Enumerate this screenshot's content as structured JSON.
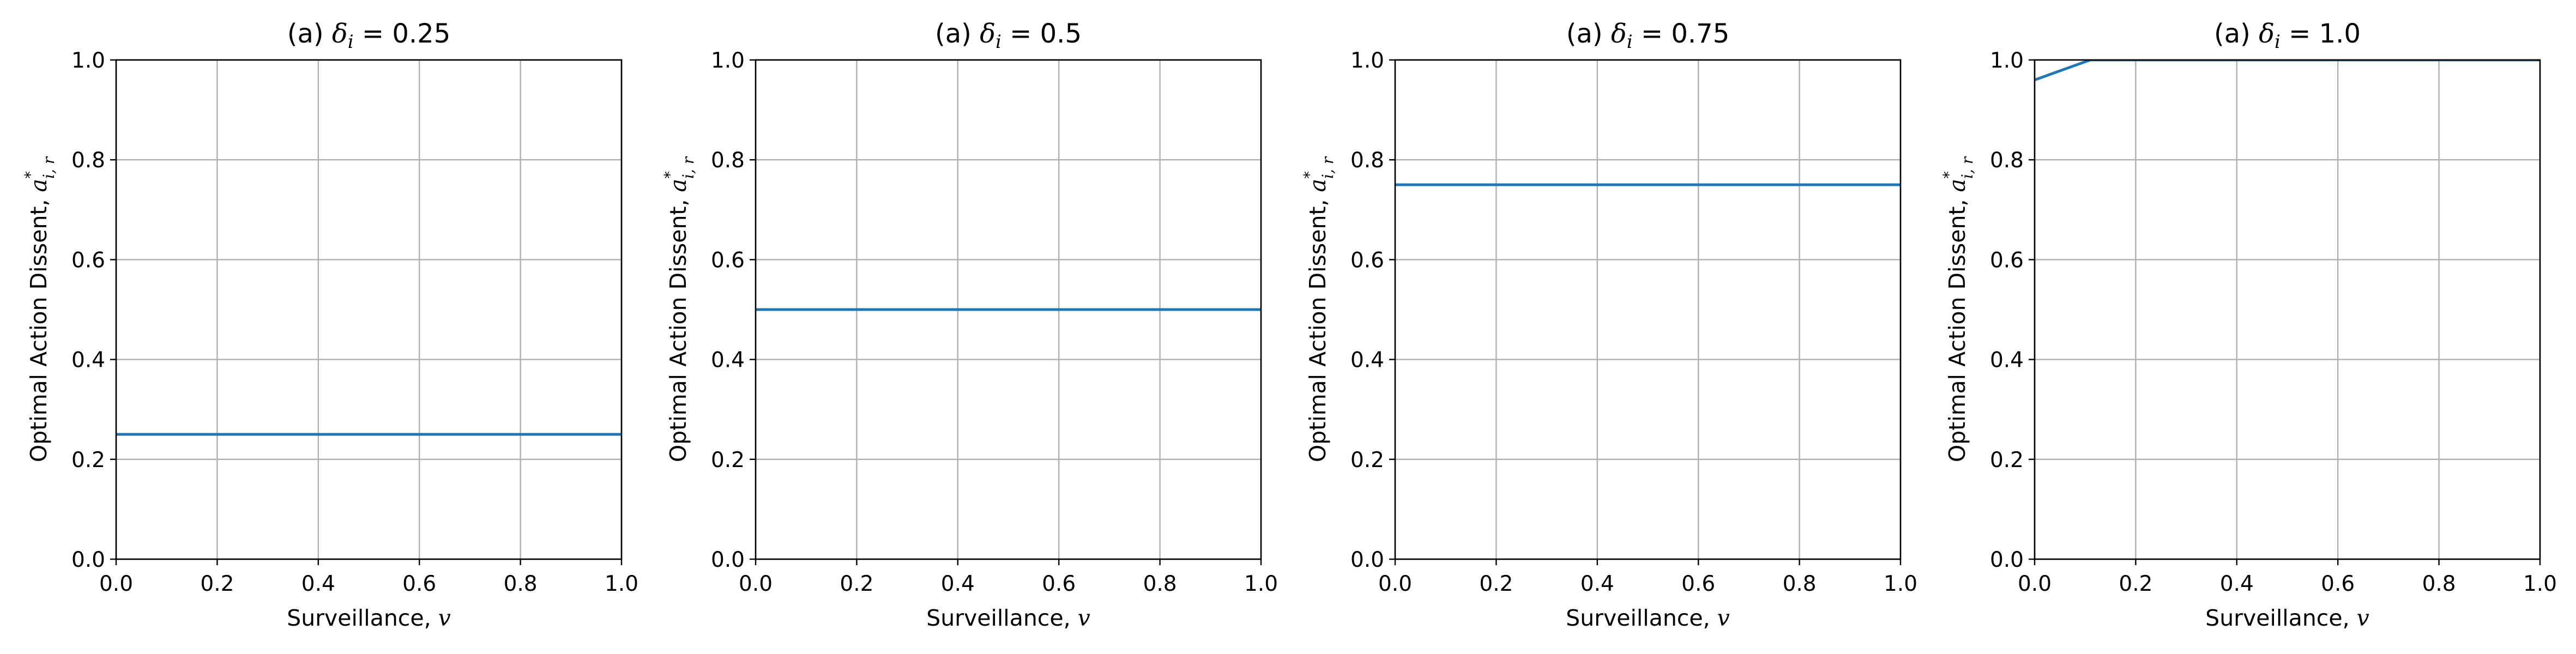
{
  "chart_data": [
    {
      "type": "line",
      "title": {
        "prefix": "(a) ",
        "symbol": "δ",
        "subscript": "i",
        "suffix": " = 0.25"
      },
      "xlabel": {
        "text": "Surveillance, ",
        "var": "v"
      },
      "ylabel": {
        "text": "Optimal Action Dissent, ",
        "var": "a",
        "sup": "*",
        "sub": "i, r"
      },
      "xlim": [
        0.0,
        1.0
      ],
      "ylim": [
        0.0,
        1.0
      ],
      "xticks": [
        "0.0",
        "0.2",
        "0.4",
        "0.6",
        "0.8",
        "1.0"
      ],
      "yticks": [
        "0.0",
        "0.2",
        "0.4",
        "0.6",
        "0.8",
        "1.0"
      ],
      "grid": true,
      "series": [
        {
          "color": "#1f77b4",
          "x": [
            0.0,
            1.0
          ],
          "y": [
            0.25,
            0.25
          ]
        }
      ]
    },
    {
      "type": "line",
      "title": {
        "prefix": "(a) ",
        "symbol": "δ",
        "subscript": "i",
        "suffix": " = 0.5"
      },
      "xlabel": {
        "text": "Surveillance, ",
        "var": "v"
      },
      "ylabel": {
        "text": "Optimal Action Dissent, ",
        "var": "a",
        "sup": "*",
        "sub": "i, r"
      },
      "xlim": [
        0.0,
        1.0
      ],
      "ylim": [
        0.0,
        1.0
      ],
      "xticks": [
        "0.0",
        "0.2",
        "0.4",
        "0.6",
        "0.8",
        "1.0"
      ],
      "yticks": [
        "0.0",
        "0.2",
        "0.4",
        "0.6",
        "0.8",
        "1.0"
      ],
      "grid": true,
      "series": [
        {
          "color": "#1f77b4",
          "x": [
            0.0,
            1.0
          ],
          "y": [
            0.5,
            0.5
          ]
        }
      ]
    },
    {
      "type": "line",
      "title": {
        "prefix": "(a) ",
        "symbol": "δ",
        "subscript": "i",
        "suffix": " = 0.75"
      },
      "xlabel": {
        "text": "Surveillance, ",
        "var": "v"
      },
      "ylabel": {
        "text": "Optimal Action Dissent, ",
        "var": "a",
        "sup": "*",
        "sub": "i, r"
      },
      "xlim": [
        0.0,
        1.0
      ],
      "ylim": [
        0.0,
        1.0
      ],
      "xticks": [
        "0.0",
        "0.2",
        "0.4",
        "0.6",
        "0.8",
        "1.0"
      ],
      "yticks": [
        "0.0",
        "0.2",
        "0.4",
        "0.6",
        "0.8",
        "1.0"
      ],
      "grid": true,
      "series": [
        {
          "color": "#1f77b4",
          "x": [
            0.0,
            1.0
          ],
          "y": [
            0.75,
            0.75
          ]
        }
      ]
    },
    {
      "type": "line",
      "title": {
        "prefix": "(a) ",
        "symbol": "δ",
        "subscript": "i",
        "suffix": " = 1.0"
      },
      "xlabel": {
        "text": "Surveillance, ",
        "var": "v"
      },
      "ylabel": {
        "text": "Optimal Action Dissent, ",
        "var": "a",
        "sup": "*",
        "sub": "i, r"
      },
      "xlim": [
        0.0,
        1.0
      ],
      "ylim": [
        0.0,
        1.0
      ],
      "xticks": [
        "0.0",
        "0.2",
        "0.4",
        "0.6",
        "0.8",
        "1.0"
      ],
      "yticks": [
        "0.0",
        "0.2",
        "0.4",
        "0.6",
        "0.8",
        "1.0"
      ],
      "grid": true,
      "series": [
        {
          "color": "#1f77b4",
          "x": [
            0.0,
            0.11,
            1.0
          ],
          "y": [
            0.96,
            1.0,
            1.0
          ]
        }
      ]
    }
  ]
}
